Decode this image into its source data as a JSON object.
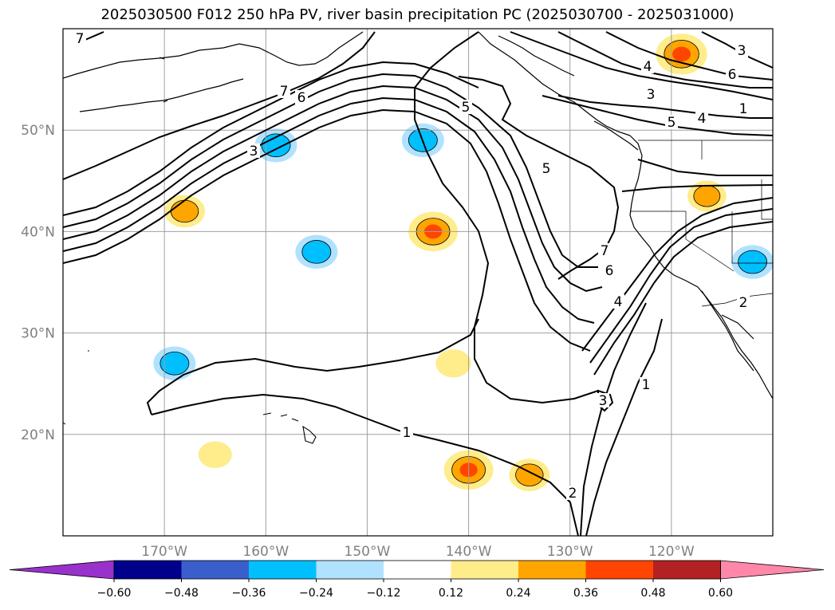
{
  "title": "2025030500 F012 250 hPa PV, river basin precipitation PC (2025030700 - 2025031000)",
  "map": {
    "lon_range": [
      -180,
      -110
    ],
    "lat_range": [
      10,
      60
    ],
    "lat_ticks": [
      {
        "value": 50,
        "label": "50°N"
      },
      {
        "value": 40,
        "label": "40°N"
      },
      {
        "value": 30,
        "label": "30°N"
      },
      {
        "value": 20,
        "label": "20°N"
      }
    ],
    "lon_ticks": [
      {
        "value": -170,
        "label": "170°W"
      },
      {
        "value": -160,
        "label": "160°W"
      },
      {
        "value": -150,
        "label": "150°W"
      },
      {
        "value": -140,
        "label": "140°W"
      },
      {
        "value": -130,
        "label": "130°W"
      },
      {
        "value": -120,
        "label": "120°W"
      }
    ],
    "grid": true
  },
  "colorbar": {
    "extend": "both",
    "levels": [
      "−0.60",
      "−0.48",
      "−0.36",
      "−0.24",
      "−0.12",
      "0.12",
      "0.24",
      "0.36",
      "0.48",
      "0.60"
    ],
    "colors": [
      "#9932cc",
      "#00008b",
      "#3a5fcd",
      "#00bfff",
      "#b0e2ff",
      "#ffffff",
      "#ffec8b",
      "#ffa500",
      "#ff4500",
      "#b22222",
      "#ff88aa"
    ]
  },
  "chart_data": {
    "type": "contour-map",
    "field_lines": "250 hPa PV (contour lines)",
    "contour_labels": [
      "7",
      "6",
      "3",
      "7",
      "5",
      "4",
      "3",
      "5",
      "4",
      "3",
      "6",
      "5",
      "7",
      "6",
      "4",
      "2",
      "1",
      "3",
      "1",
      "2",
      "1"
    ],
    "shading": "river basin precipitation PC",
    "anomaly_blobs": [
      {
        "lon": -119,
        "lat": 57.5,
        "sign": "positive",
        "magnitude": 0.4
      },
      {
        "lon": -116.5,
        "lat": 43.5,
        "sign": "positive",
        "magnitude": 0.26
      },
      {
        "lon": -168,
        "lat": 42,
        "sign": "positive",
        "magnitude": 0.28
      },
      {
        "lon": -143.5,
        "lat": 40,
        "sign": "positive",
        "magnitude": 0.38
      },
      {
        "lon": -140,
        "lat": 16.5,
        "sign": "positive",
        "magnitude": 0.38
      },
      {
        "lon": -134,
        "lat": 16,
        "sign": "positive",
        "magnitude": 0.28
      },
      {
        "lon": -141.5,
        "lat": 27,
        "sign": "positive",
        "magnitude": 0.22
      },
      {
        "lon": -165,
        "lat": 18,
        "sign": "positive",
        "magnitude": 0.2
      },
      {
        "lon": -159,
        "lat": 48.5,
        "sign": "negative",
        "magnitude": 0.3
      },
      {
        "lon": -144.5,
        "lat": 49,
        "sign": "negative",
        "magnitude": 0.3
      },
      {
        "lon": -155,
        "lat": 38,
        "sign": "negative",
        "magnitude": 0.3
      },
      {
        "lon": -169,
        "lat": 27,
        "sign": "negative",
        "magnitude": 0.3
      },
      {
        "lon": -112,
        "lat": 37,
        "sign": "negative",
        "magnitude": 0.3
      }
    ]
  }
}
